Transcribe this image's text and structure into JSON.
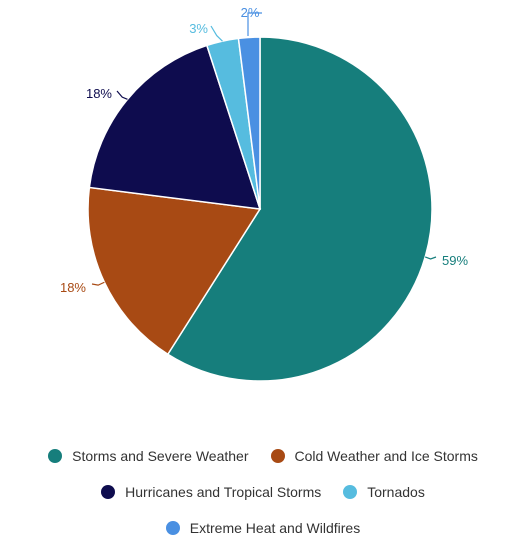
{
  "chart_data": {
    "type": "pie",
    "title": "",
    "unit": "%",
    "start_position": "12 o'clock, clockwise",
    "slices": [
      {
        "label": "Storms and Severe Weather",
        "value": 59,
        "value_label": "59%",
        "color": "#167e7c"
      },
      {
        "label": "Cold Weather and Ice Storms",
        "value": 18,
        "value_label": "18%",
        "color": "#a84a14"
      },
      {
        "label": "Hurricanes and Tropical Storms",
        "value": 18,
        "value_label": "18%",
        "color": "#0e0c4e"
      },
      {
        "label": "Tornados",
        "value": 3,
        "value_label": "3%",
        "color": "#56bcdf"
      },
      {
        "label": "Extreme Heat and Wildfires",
        "value": 2,
        "value_label": "2%",
        "color": "#4a90e2"
      }
    ],
    "legend": {
      "placement": "bottom",
      "rows": [
        [
          0,
          1
        ],
        [
          2,
          3
        ],
        [
          4
        ]
      ]
    }
  }
}
